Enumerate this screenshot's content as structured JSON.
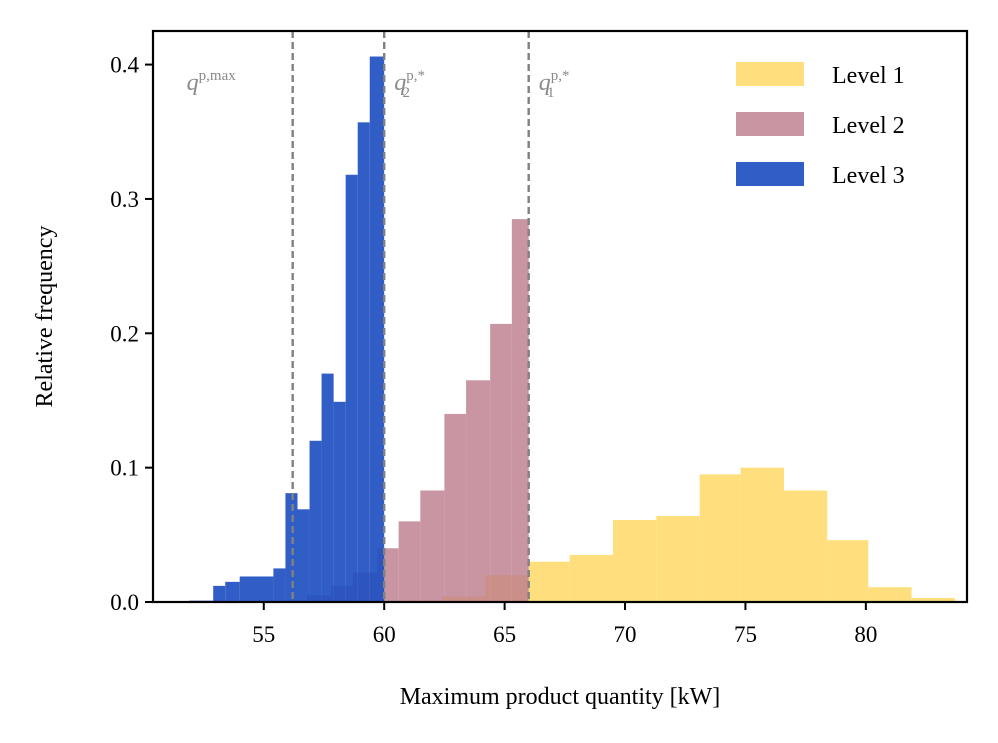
{
  "chart_data": {
    "type": "bar",
    "title": "",
    "xlabel": "Maximum product quantity [kW]",
    "ylabel": "Relative frequency",
    "xlim": [
      50.4,
      84.2
    ],
    "ylim": [
      0,
      0.425
    ],
    "xticks": [
      {
        "value": 55,
        "label": "55"
      },
      {
        "value": 60,
        "label": "60"
      },
      {
        "value": 65,
        "label": "65"
      },
      {
        "value": 70,
        "label": "70"
      },
      {
        "value": 75,
        "label": "75"
      },
      {
        "value": 80,
        "label": "80"
      }
    ],
    "yticks": [
      {
        "value": 0.0,
        "label": "0.0"
      },
      {
        "value": 0.1,
        "label": "0.1"
      },
      {
        "value": 0.2,
        "label": "0.2"
      },
      {
        "value": 0.3,
        "label": "0.3"
      },
      {
        "value": 0.4,
        "label": "0.4"
      }
    ],
    "grid": false,
    "legend_position": "top-right",
    "series": [
      {
        "name": "Level 1",
        "color": "#ffd966",
        "opacity": 0.85,
        "bins": [
          {
            "x0": 51.8,
            "x1": 53.6,
            "value": 0.0
          },
          {
            "x0": 53.6,
            "x1": 55.4,
            "value": 0.0
          },
          {
            "x0": 55.4,
            "x1": 57.1,
            "value": 0.0
          },
          {
            "x0": 57.1,
            "x1": 58.9,
            "value": 0.0
          },
          {
            "x0": 58.9,
            "x1": 60.7,
            "value": 0.0
          },
          {
            "x0": 60.7,
            "x1": 62.4,
            "value": 0.001
          },
          {
            "x0": 62.4,
            "x1": 64.2,
            "value": 0.004
          },
          {
            "x0": 64.2,
            "x1": 66.0,
            "value": 0.02
          },
          {
            "x0": 66.0,
            "x1": 67.7,
            "value": 0.03
          },
          {
            "x0": 67.7,
            "x1": 69.5,
            "value": 0.035
          },
          {
            "x0": 69.5,
            "x1": 71.3,
            "value": 0.061
          },
          {
            "x0": 71.3,
            "x1": 73.1,
            "value": 0.064
          },
          {
            "x0": 73.1,
            "x1": 74.8,
            "value": 0.095
          },
          {
            "x0": 74.8,
            "x1": 76.6,
            "value": 0.1
          },
          {
            "x0": 76.6,
            "x1": 78.4,
            "value": 0.083
          },
          {
            "x0": 78.4,
            "x1": 80.1,
            "value": 0.046
          },
          {
            "x0": 80.1,
            "x1": 81.9,
            "value": 0.011
          },
          {
            "x0": 81.9,
            "x1": 83.7,
            "value": 0.003
          }
        ]
      },
      {
        "name": "Level 2",
        "color": "#bb7b8b",
        "opacity": 0.8,
        "bins": [
          {
            "x0": 51.8,
            "x1": 52.8,
            "value": 0.0
          },
          {
            "x0": 52.8,
            "x1": 53.9,
            "value": 0.0
          },
          {
            "x0": 53.9,
            "x1": 54.9,
            "value": 0.0
          },
          {
            "x0": 54.9,
            "x1": 55.9,
            "value": 0.0
          },
          {
            "x0": 55.9,
            "x1": 56.8,
            "value": 0.001
          },
          {
            "x0": 56.8,
            "x1": 57.8,
            "value": 0.005
          },
          {
            "x0": 57.8,
            "x1": 58.7,
            "value": 0.012
          },
          {
            "x0": 58.7,
            "x1": 59.7,
            "value": 0.022
          },
          {
            "x0": 59.7,
            "x1": 60.6,
            "value": 0.04
          },
          {
            "x0": 60.6,
            "x1": 61.5,
            "value": 0.06
          },
          {
            "x0": 61.5,
            "x1": 62.5,
            "value": 0.083
          },
          {
            "x0": 62.5,
            "x1": 63.4,
            "value": 0.14
          },
          {
            "x0": 63.4,
            "x1": 64.4,
            "value": 0.165
          },
          {
            "x0": 64.4,
            "x1": 65.3,
            "value": 0.207
          },
          {
            "x0": 65.3,
            "x1": 66.0,
            "value": 0.285
          }
        ]
      },
      {
        "name": "Level 3",
        "color": "#1f4fc1",
        "opacity": 0.92,
        "bins": [
          {
            "x0": 51.9,
            "x1": 52.9,
            "value": 0.001
          },
          {
            "x0": 52.9,
            "x1": 53.4,
            "value": 0.012
          },
          {
            "x0": 53.4,
            "x1": 54.0,
            "value": 0.015
          },
          {
            "x0": 54.0,
            "x1": 55.4,
            "value": 0.019
          },
          {
            "x0": 55.4,
            "x1": 55.9,
            "value": 0.025
          },
          {
            "x0": 55.9,
            "x1": 56.4,
            "value": 0.081
          },
          {
            "x0": 56.4,
            "x1": 56.9,
            "value": 0.069
          },
          {
            "x0": 56.9,
            "x1": 57.4,
            "value": 0.12
          },
          {
            "x0": 57.4,
            "x1": 57.9,
            "value": 0.17
          },
          {
            "x0": 57.9,
            "x1": 58.4,
            "value": 0.149
          },
          {
            "x0": 58.4,
            "x1": 58.9,
            "value": 0.318
          },
          {
            "x0": 58.9,
            "x1": 59.4,
            "value": 0.357
          },
          {
            "x0": 59.4,
            "x1": 60.0,
            "value": 0.406
          }
        ]
      }
    ],
    "vlines": [
      {
        "x": 56.2,
        "label": "q",
        "sup": "p,max",
        "sub": ""
      },
      {
        "x": 60.0,
        "label": "q",
        "sup": "p,*",
        "sub": "2"
      },
      {
        "x": 66.0,
        "label": "q",
        "sup": "p,*",
        "sub": "1"
      }
    ],
    "vline_color": "#808080"
  }
}
